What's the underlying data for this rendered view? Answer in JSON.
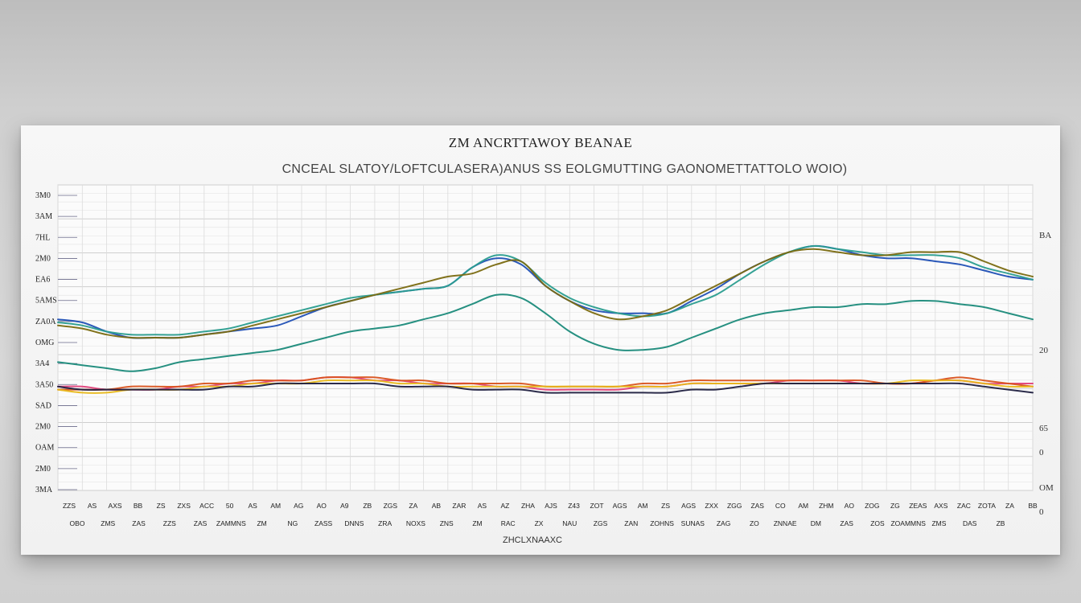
{
  "chart_data": {
    "type": "line",
    "title": "ZM ANCRTTAWOY BEANAE",
    "subtitle": "CNCEAL SLATOY/LOFTCULASERA)ANUS SS EOLGMUTTING GAONOMETTATTOLO WOIO)",
    "xlabel": "ZHCLXNAAXC",
    "ylabel": "",
    "y_tick_labels": [
      "3M0",
      "3AM",
      "7HL",
      "2M0",
      "EA6",
      "5AMS",
      "ZA0A",
      "OMG",
      "3A4",
      "3A50",
      "SAD",
      "2M0",
      "OAM",
      "2M0",
      "3MA"
    ],
    "right_tick_labels": [
      "BA",
      "20",
      "65",
      "0",
      "OM",
      "0"
    ],
    "x_tick_labels_row1": [
      "ZZS",
      "AS",
      "AXS",
      "BB",
      "ZS",
      "ZXS",
      "ACC",
      "50",
      "AS",
      "AM",
      "AG",
      "AO",
      "A9",
      "ZB",
      "ZGS",
      "ZA",
      "AB",
      "ZAR",
      "AS",
      "AZ",
      "ZHA",
      "AJS",
      "Z43",
      "ZOT",
      "AGS",
      "AM",
      "ZS",
      "AGS",
      "ZXX",
      "ZGG",
      "ZAS",
      "CO",
      "AM",
      "ZHM",
      "AO",
      "ZOG",
      "ZG",
      "ZEAS",
      "AXS",
      "ZAC",
      "ZOTA",
      "ZA",
      "BB"
    ],
    "x_tick_labels_row2": [
      "OBO",
      "ZMS",
      "ZAS",
      "ZZS",
      "ZAS",
      "ZAMMNS",
      "ZM",
      "NG",
      "ZASS",
      "DNNS",
      "ZRA",
      "NOXS",
      "ZNS",
      "ZM",
      "RAC",
      "ZX",
      "NAU",
      "ZGS",
      "ZAN",
      "ZOHNS",
      "SUNAS",
      "ZAG",
      "ZO",
      "ZNNAE",
      "DM",
      "ZAS",
      "ZOS",
      "ZOAMMNS",
      "ZMS",
      "DAS",
      "ZB"
    ],
    "x": [
      0,
      1,
      2,
      3,
      4,
      5,
      6,
      7,
      8,
      9,
      10,
      11,
      12,
      13,
      14,
      15,
      16,
      17,
      18,
      19,
      20,
      21,
      22,
      23,
      24,
      25,
      26,
      27,
      28,
      29,
      30,
      31,
      32,
      33,
      34,
      35,
      36,
      37,
      38,
      39,
      40
    ],
    "xlim": [
      0,
      40
    ],
    "ylim": [
      0,
      100
    ],
    "grid": true,
    "series": [
      {
        "color": "#1f4fb5",
        "values": [
          56,
          55,
          52,
          50,
          50,
          50,
          51,
          52,
          53,
          54,
          57,
          60,
          62,
          64,
          65,
          66,
          67,
          73,
          76,
          74,
          67,
          62,
          59,
          58,
          58,
          58,
          62,
          66,
          71,
          75,
          78,
          80,
          79,
          77,
          76,
          76,
          75,
          74,
          72,
          70,
          69
        ]
      },
      {
        "color": "#2a9d8f",
        "values": [
          55,
          54,
          52,
          51,
          51,
          51,
          52,
          53,
          55,
          57,
          59,
          61,
          63,
          64,
          65,
          66,
          67,
          73,
          77,
          75,
          68,
          63,
          60,
          58,
          57,
          58,
          61,
          64,
          69,
          74,
          78,
          80,
          79,
          78,
          77,
          77,
          77,
          76,
          73,
          71,
          69
        ]
      },
      {
        "color": "#7a6a10",
        "values": [
          54,
          53,
          51,
          50,
          50,
          50,
          51,
          52,
          54,
          56,
          58,
          60,
          62,
          64,
          66,
          68,
          70,
          71,
          74,
          75,
          67,
          62,
          58,
          56,
          57,
          59,
          63,
          67,
          71,
          75,
          78,
          79,
          78,
          77,
          77,
          78,
          78,
          78,
          75,
          72,
          70
        ]
      },
      {
        "color": "#1a8a7a",
        "values": [
          42,
          41,
          40,
          39,
          40,
          42,
          43,
          44,
          45,
          46,
          48,
          50,
          52,
          53,
          54,
          56,
          58,
          61,
          64,
          63,
          58,
          52,
          48,
          46,
          46,
          47,
          50,
          53,
          56,
          58,
          59,
          60,
          60,
          61,
          61,
          62,
          62,
          61,
          60,
          58,
          56
        ]
      },
      {
        "color": "#e0407a",
        "values": [
          34,
          34,
          33,
          33,
          33,
          34,
          34,
          35,
          35,
          36,
          36,
          37,
          37,
          36,
          36,
          35,
          35,
          35,
          34,
          34,
          33,
          33,
          33,
          33,
          34,
          34,
          35,
          35,
          35,
          35,
          36,
          36,
          36,
          35,
          35,
          35,
          36,
          36,
          35,
          35,
          35
        ]
      },
      {
        "color": "#d9531e",
        "values": [
          33,
          33,
          33,
          34,
          34,
          34,
          35,
          35,
          36,
          36,
          36,
          37,
          37,
          37,
          36,
          36,
          35,
          35,
          35,
          35,
          34,
          34,
          34,
          34,
          35,
          35,
          36,
          36,
          36,
          36,
          36,
          36,
          36,
          36,
          35,
          35,
          36,
          37,
          36,
          35,
          34
        ]
      },
      {
        "color": "#e8b81a",
        "values": [
          33,
          32,
          32,
          33,
          33,
          33,
          34,
          34,
          35,
          35,
          35,
          36,
          36,
          36,
          35,
          35,
          34,
          34,
          34,
          34,
          34,
          34,
          34,
          34,
          34,
          34,
          35,
          35,
          35,
          35,
          35,
          35,
          35,
          35,
          35,
          36,
          36,
          36,
          35,
          34,
          34
        ]
      },
      {
        "color": "#202040",
        "values": [
          34,
          33,
          33,
          33,
          33,
          33,
          33,
          34,
          34,
          35,
          35,
          35,
          35,
          35,
          34,
          34,
          34,
          33,
          33,
          33,
          32,
          32,
          32,
          32,
          32,
          32,
          33,
          33,
          34,
          35,
          35,
          35,
          35,
          35,
          35,
          35,
          35,
          35,
          34,
          33,
          32
        ]
      }
    ]
  }
}
